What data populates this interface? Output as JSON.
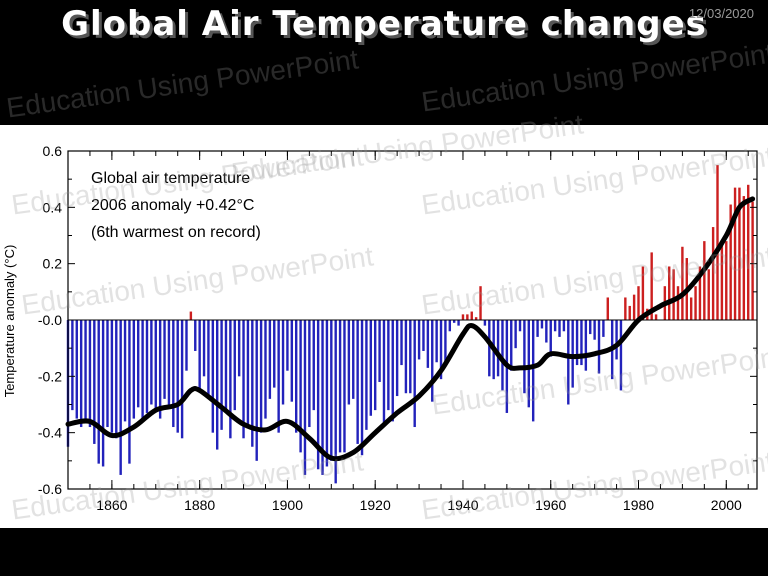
{
  "slide": {
    "title": "Global Air Temperature changes",
    "date": "12/03/2020",
    "watermark": "Education Using PowerPoint"
  },
  "colors": {
    "positive": "#cc1f1f",
    "negative": "#2222bb",
    "smooth": "#000000",
    "background": "#ffffff"
  },
  "chart_data": {
    "type": "bar",
    "title": "",
    "annotation": [
      "Global air temperature",
      "2006 anomaly +0.42°C",
      "(6th warmest on record)"
    ],
    "xlabel": "",
    "ylabel": "Temperature anomaly (°C)",
    "xlim": [
      1850,
      2007
    ],
    "ylim": [
      -0.6,
      0.6
    ],
    "x_ticks": [
      "1860",
      "1880",
      "1900",
      "1920",
      "1940",
      "1960",
      "1980",
      "2000"
    ],
    "y_ticks": [
      "0.6",
      "0.4",
      "0.2",
      "-0.0",
      "-0.2",
      "-0.4",
      "-0.6"
    ],
    "series": [
      {
        "kind": "annual anomaly bars",
        "x": [
          1850,
          1851,
          1852,
          1853,
          1854,
          1855,
          1856,
          1857,
          1858,
          1859,
          1860,
          1861,
          1862,
          1863,
          1864,
          1865,
          1866,
          1867,
          1868,
          1869,
          1870,
          1871,
          1872,
          1873,
          1874,
          1875,
          1876,
          1877,
          1878,
          1879,
          1880,
          1881,
          1882,
          1883,
          1884,
          1885,
          1886,
          1887,
          1888,
          1889,
          1890,
          1891,
          1892,
          1893,
          1894,
          1895,
          1896,
          1897,
          1898,
          1899,
          1900,
          1901,
          1902,
          1903,
          1904,
          1905,
          1906,
          1907,
          1908,
          1909,
          1910,
          1911,
          1912,
          1913,
          1914,
          1915,
          1916,
          1917,
          1918,
          1919,
          1920,
          1921,
          1922,
          1923,
          1924,
          1925,
          1926,
          1927,
          1928,
          1929,
          1930,
          1931,
          1932,
          1933,
          1934,
          1935,
          1936,
          1937,
          1938,
          1939,
          1940,
          1941,
          1942,
          1943,
          1944,
          1945,
          1946,
          1947,
          1948,
          1949,
          1950,
          1951,
          1952,
          1953,
          1954,
          1955,
          1956,
          1957,
          1958,
          1959,
          1960,
          1961,
          1962,
          1963,
          1964,
          1965,
          1966,
          1967,
          1968,
          1969,
          1970,
          1971,
          1972,
          1973,
          1974,
          1975,
          1976,
          1977,
          1978,
          1979,
          1980,
          1981,
          1982,
          1983,
          1984,
          1985,
          1986,
          1987,
          1988,
          1989,
          1990,
          1991,
          1992,
          1993,
          1994,
          1995,
          1996,
          1997,
          1998,
          1999,
          2000,
          2001,
          2002,
          2003,
          2004,
          2005,
          2006
        ],
        "values": [
          -0.45,
          -0.32,
          -0.35,
          -0.38,
          -0.36,
          -0.38,
          -0.44,
          -0.51,
          -0.52,
          -0.38,
          -0.4,
          -0.42,
          -0.55,
          -0.36,
          -0.51,
          -0.35,
          -0.31,
          -0.35,
          -0.33,
          -0.3,
          -0.32,
          -0.35,
          -0.28,
          -0.3,
          -0.38,
          -0.4,
          -0.42,
          -0.18,
          0.03,
          -0.11,
          -0.25,
          -0.2,
          -0.28,
          -0.4,
          -0.46,
          -0.39,
          -0.33,
          -0.42,
          -0.32,
          -0.2,
          -0.42,
          -0.38,
          -0.45,
          -0.5,
          -0.4,
          -0.35,
          -0.28,
          -0.24,
          -0.4,
          -0.3,
          -0.18,
          -0.29,
          -0.4,
          -0.47,
          -0.55,
          -0.38,
          -0.32,
          -0.53,
          -0.55,
          -0.52,
          -0.5,
          -0.58,
          -0.47,
          -0.47,
          -0.3,
          -0.28,
          -0.44,
          -0.48,
          -0.39,
          -0.34,
          -0.32,
          -0.22,
          -0.37,
          -0.32,
          -0.36,
          -0.27,
          -0.16,
          -0.26,
          -0.26,
          -0.38,
          -0.14,
          -0.11,
          -0.17,
          -0.29,
          -0.15,
          -0.21,
          -0.16,
          -0.04,
          -0.01,
          -0.02,
          0.02,
          0.02,
          0.03,
          0.01,
          0.12,
          -0.02,
          -0.2,
          -0.21,
          -0.2,
          -0.25,
          -0.33,
          -0.18,
          -0.1,
          -0.04,
          -0.26,
          -0.31,
          -0.36,
          -0.06,
          -0.03,
          -0.08,
          -0.13,
          -0.04,
          -0.06,
          -0.04,
          -0.3,
          -0.24,
          -0.16,
          -0.16,
          -0.18,
          -0.05,
          -0.07,
          -0.19,
          -0.06,
          0.08,
          -0.21,
          -0.14,
          -0.25,
          0.08,
          0.05,
          0.09,
          0.12,
          0.19,
          0.04,
          0.24,
          0.02,
          0.0,
          0.12,
          0.19,
          0.18,
          0.12,
          0.26,
          0.22,
          0.08,
          0.12,
          0.19,
          0.28,
          0.18,
          0.33,
          0.55,
          0.27,
          0.28,
          0.41,
          0.47,
          0.47,
          0.44,
          0.48,
          0.42
        ]
      },
      {
        "kind": "smoothed curve",
        "x": [
          1850,
          1855,
          1860,
          1865,
          1870,
          1875,
          1878,
          1880,
          1885,
          1890,
          1895,
          1900,
          1905,
          1910,
          1915,
          1920,
          1925,
          1930,
          1935,
          1940,
          1942,
          1945,
          1950,
          1953,
          1957,
          1960,
          1965,
          1970,
          1975,
          1980,
          1985,
          1990,
          1995,
          2000,
          2003,
          2006
        ],
        "values": [
          -0.37,
          -0.36,
          -0.41,
          -0.38,
          -0.32,
          -0.3,
          -0.25,
          -0.25,
          -0.31,
          -0.37,
          -0.39,
          -0.36,
          -0.42,
          -0.49,
          -0.47,
          -0.4,
          -0.33,
          -0.27,
          -0.18,
          -0.05,
          -0.02,
          -0.06,
          -0.16,
          -0.17,
          -0.16,
          -0.12,
          -0.13,
          -0.12,
          -0.09,
          0.0,
          0.05,
          0.09,
          0.18,
          0.3,
          0.4,
          0.43
        ]
      }
    ],
    "grid": false,
    "legend": "none"
  }
}
